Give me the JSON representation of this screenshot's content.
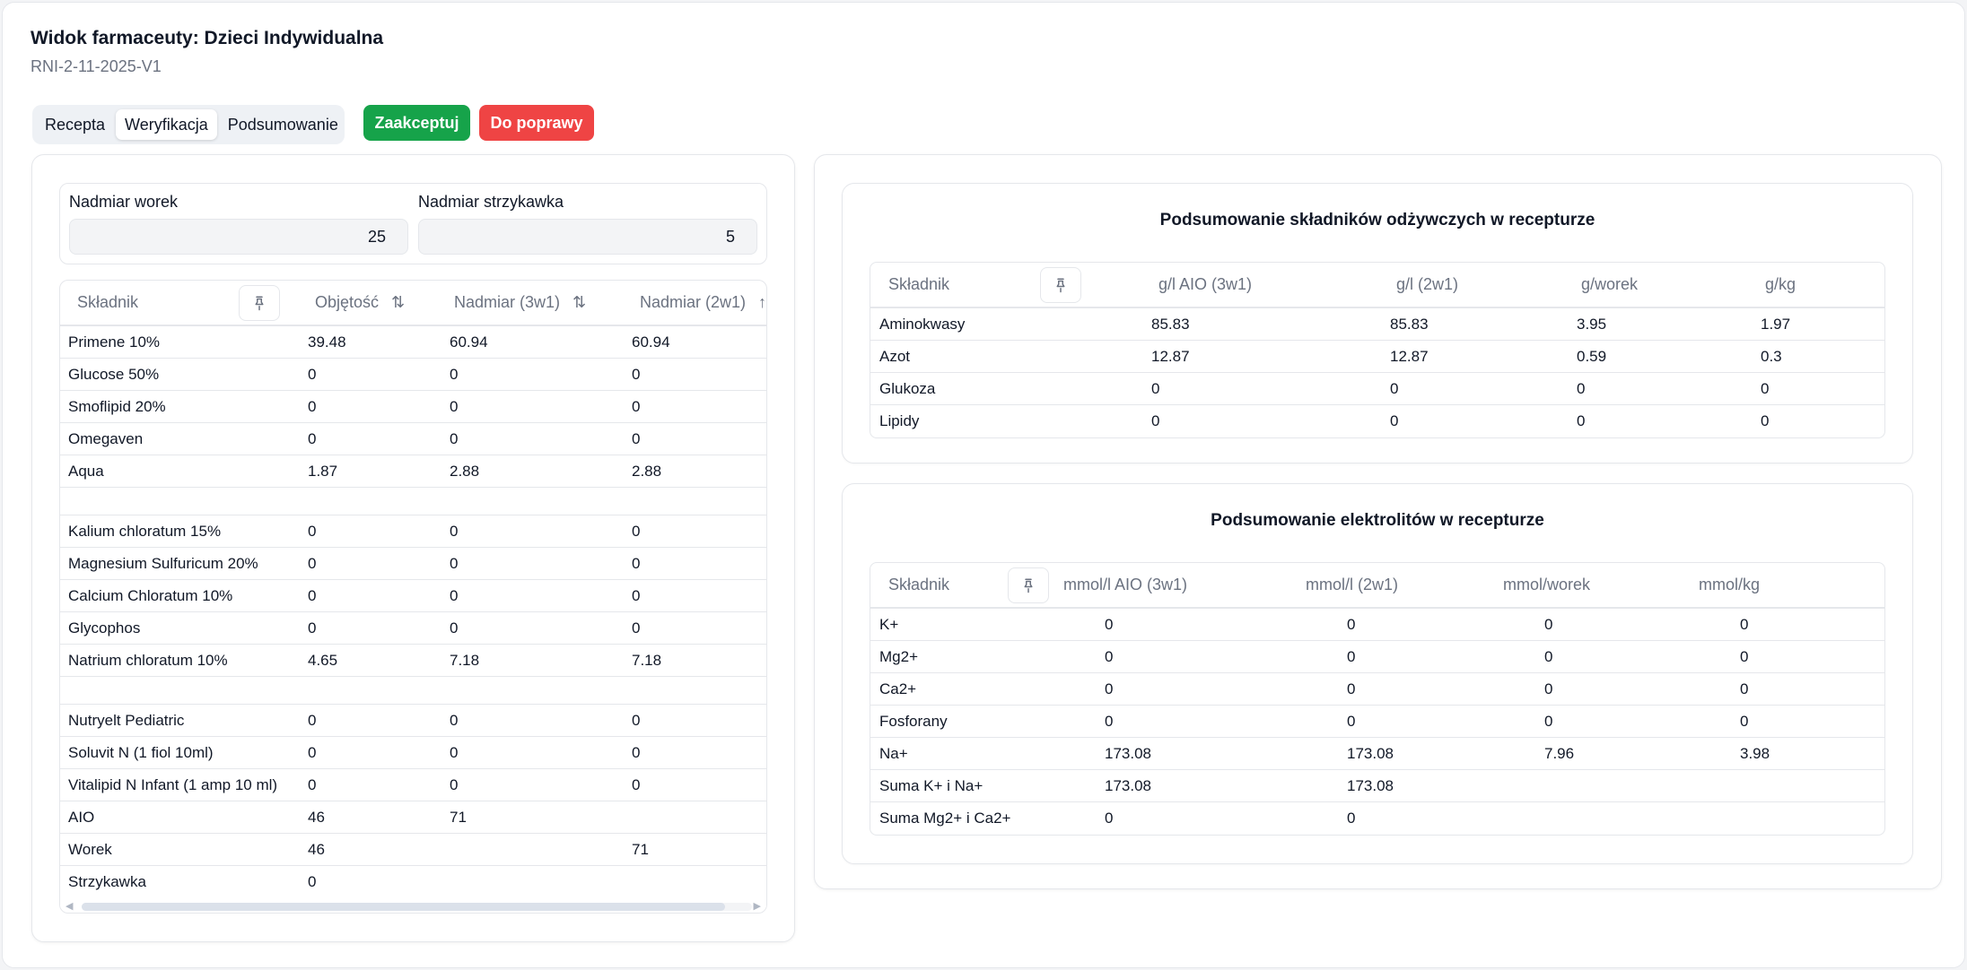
{
  "header": {
    "title": "Widok farmaceuty: Dzieci Indywidualna",
    "subtitle": "RNI-2-11-2025-V1"
  },
  "tabs": [
    "Recepta",
    "Weryfikacja",
    "Podsumowanie"
  ],
  "active_tab": "Weryfikacja",
  "buttons": {
    "accept": "Zaakceptuj",
    "fix": "Do poprawy"
  },
  "surplus": {
    "bag_label": "Nadmiar worek",
    "bag_value": "25",
    "syringe_label": "Nadmiar strzykawka",
    "syringe_value": "5"
  },
  "ingredients": {
    "columns": [
      "Składnik",
      "Objętość",
      "Nadmiar (3w1)",
      "Nadmiar (2w1)"
    ],
    "rows": [
      [
        "Primene 10%",
        "39.48",
        "60.94",
        "60.94"
      ],
      [
        "Glucose 50%",
        "0",
        "0",
        "0"
      ],
      [
        "Smoflipid 20%",
        "0",
        "0",
        "0"
      ],
      [
        "Omegaven",
        "0",
        "0",
        "0"
      ],
      [
        "Aqua",
        "1.87",
        "2.88",
        "2.88"
      ],
      [
        "",
        "",
        "",
        ""
      ],
      [
        "Kalium chloratum 15%",
        "0",
        "0",
        "0"
      ],
      [
        "Magnesium Sulfuricum 20%",
        "0",
        "0",
        "0"
      ],
      [
        "Calcium Chloratum 10%",
        "0",
        "0",
        "0"
      ],
      [
        "Glycophos",
        "0",
        "0",
        "0"
      ],
      [
        "Natrium chloratum 10%",
        "4.65",
        "7.18",
        "7.18"
      ],
      [
        "",
        "",
        "",
        ""
      ],
      [
        "Nutryelt Pediatric",
        "0",
        "0",
        "0"
      ],
      [
        "Soluvit N (1 fiol 10ml)",
        "0",
        "0",
        "0"
      ],
      [
        "Vitalipid N Infant (1 amp 10 ml)",
        "0",
        "0",
        "0"
      ],
      [
        "AIO",
        "46",
        "71",
        ""
      ],
      [
        "Worek",
        "46",
        "",
        "71"
      ],
      [
        "Strzykawka",
        "0",
        "",
        ""
      ]
    ]
  },
  "nutrients": {
    "title": "Podsumowanie składników odżywczych w recepturze",
    "columns": [
      "Składnik",
      "g/l AIO (3w1)",
      "g/l (2w1)",
      "g/worek",
      "g/kg"
    ],
    "rows": [
      [
        "Aminokwasy",
        "85.83",
        "85.83",
        "3.95",
        "1.97"
      ],
      [
        "Azot",
        "12.87",
        "12.87",
        "0.59",
        "0.3"
      ],
      [
        "Glukoza",
        "0",
        "0",
        "0",
        "0"
      ],
      [
        "Lipidy",
        "0",
        "0",
        "0",
        "0"
      ]
    ]
  },
  "electrolytes": {
    "title": "Podsumowanie elektrolitów w recepturze",
    "columns": [
      "Składnik",
      "mmol/l AIO (3w1)",
      "mmol/l (2w1)",
      "mmol/worek",
      "mmol/kg"
    ],
    "rows": [
      [
        "K+",
        "0",
        "0",
        "0",
        "0"
      ],
      [
        "Mg2+",
        "0",
        "0",
        "0",
        "0"
      ],
      [
        "Ca2+",
        "0",
        "0",
        "0",
        "0"
      ],
      [
        "Fosforany",
        "0",
        "0",
        "0",
        "0"
      ],
      [
        "Na+",
        "173.08",
        "173.08",
        "7.96",
        "3.98"
      ],
      [
        "Suma K+ i Na+",
        "173.08",
        "173.08",
        "",
        ""
      ],
      [
        "Suma Mg2+ i Ca2+",
        "0",
        "0",
        "",
        ""
      ]
    ]
  }
}
